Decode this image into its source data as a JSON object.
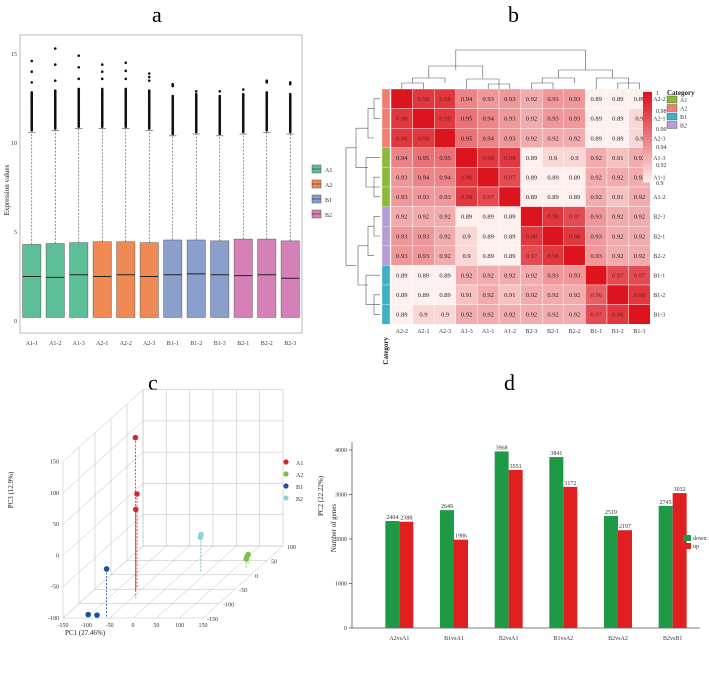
{
  "panels": {
    "a": "a",
    "b": "b",
    "c": "c",
    "d": "d"
  },
  "chart_data": [
    {
      "id": "a",
      "type": "box",
      "ylabel": "Expression values",
      "ylim": [
        0,
        15.5
      ],
      "yticks": [
        0,
        5,
        10,
        15
      ],
      "categories": [
        "A1-1",
        "A1-2",
        "A1-3",
        "A2-1",
        "A2-2",
        "A2-3",
        "B1-1",
        "B1-2",
        "B1-3",
        "B2-1",
        "B2-2",
        "B2-3"
      ],
      "groups": [
        "A1",
        "A1",
        "A1",
        "A2",
        "A2",
        "A2",
        "B1",
        "B1",
        "B1",
        "B2",
        "B2",
        "B2"
      ],
      "q1": [
        0.2,
        0.2,
        0.2,
        0.2,
        0.2,
        0.2,
        0.2,
        0.2,
        0.2,
        0.2,
        0.2,
        0.2
      ],
      "q3": [
        4.3,
        4.35,
        4.4,
        4.45,
        4.45,
        4.4,
        4.55,
        4.55,
        4.5,
        4.6,
        4.6,
        4.5
      ],
      "median": [
        2.5,
        2.45,
        2.6,
        2.5,
        2.6,
        2.5,
        2.6,
        2.65,
        2.6,
        2.55,
        2.6,
        2.4
      ],
      "whisker_high": [
        10.6,
        10.7,
        10.8,
        10.8,
        10.8,
        10.7,
        10.4,
        10.5,
        10.4,
        10.5,
        10.6,
        10.5
      ],
      "outlier_max": [
        14.6,
        15.3,
        14.9,
        14.4,
        14.5,
        13.9,
        13.3,
        12.9,
        12.9,
        13.0,
        13.5,
        13.4
      ],
      "legend": [
        {
          "name": "A1",
          "color": "#5cbf98"
        },
        {
          "name": "A2",
          "color": "#f08a55"
        },
        {
          "name": "B1",
          "color": "#8a9fcc"
        },
        {
          "name": "B2",
          "color": "#d680b8"
        }
      ]
    },
    {
      "id": "b",
      "type": "heatmap",
      "rows": [
        "A2-2",
        "A2-1",
        "A2-3",
        "A1-3",
        "A1-1",
        "A1-2",
        "B2-3",
        "B2-1",
        "B2-2",
        "B1-1",
        "B1-2",
        "B1-3"
      ],
      "cols": [
        "A2-2",
        "A2-1",
        "A2-3",
        "A1-3",
        "A1-1",
        "A1-2",
        "B2-3",
        "B2-1",
        "B2-2",
        "B1-1",
        "B1-2",
        "B1-3"
      ],
      "row_groups": [
        "A2",
        "A2",
        "A2",
        "A1",
        "A1",
        "A1",
        "B2",
        "B2",
        "B2",
        "B1",
        "B1",
        "B1"
      ],
      "values": [
        [
          "1",
          "0.98",
          "0.98",
          "0.94",
          "0.93",
          "0.93",
          "0.92",
          "0.93",
          "0.93",
          "0.89",
          "0.89",
          "0.89"
        ],
        [
          "0.98",
          "1",
          "0.98",
          "0.95",
          "0.94",
          "0.93",
          "0.92",
          "0.93",
          "0.93",
          "0.89",
          "0.89",
          "0.9"
        ],
        [
          "0.98",
          "0.98",
          "1",
          "0.95",
          "0.94",
          "0.93",
          "0.92",
          "0.92",
          "0.92",
          "0.89",
          "0.89",
          "0.9"
        ],
        [
          "0.94",
          "0.95",
          "0.95",
          "1",
          "0.98",
          "0.98",
          "0.89",
          "0.9",
          "0.9",
          "0.92",
          "0.91",
          "0.92"
        ],
        [
          "0.93",
          "0.94",
          "0.94",
          "0.98",
          "1",
          "0.97",
          "0.89",
          "0.89",
          "0.89",
          "0.92",
          "0.92",
          "0.92"
        ],
        [
          "0.93",
          "0.93",
          "0.93",
          "0.98",
          "0.97",
          "1",
          "0.89",
          "0.89",
          "0.89",
          "0.92",
          "0.91",
          "0.92"
        ],
        [
          "0.92",
          "0.92",
          "0.92",
          "0.89",
          "0.89",
          "0.89",
          "1",
          "0.98",
          "0.97",
          "0.93",
          "0.92",
          "0.92"
        ],
        [
          "0.93",
          "0.93",
          "0.92",
          "0.9",
          "0.89",
          "0.89",
          "0.98",
          "1",
          "0.98",
          "0.93",
          "0.92",
          "0.92"
        ],
        [
          "0.93",
          "0.93",
          "0.92",
          "0.9",
          "0.89",
          "0.89",
          "0.97",
          "0.98",
          "1",
          "0.93",
          "0.92",
          "0.92"
        ],
        [
          "0.89",
          "0.89",
          "0.89",
          "0.92",
          "0.92",
          "0.92",
          "0.92",
          "0.93",
          "0.93",
          "1",
          "0.97",
          "0.97"
        ],
        [
          "0.89",
          "0.89",
          "0.89",
          "0.91",
          "0.92",
          "0.91",
          "0.92",
          "0.92",
          "0.92",
          "0.96",
          "1",
          "0.98"
        ],
        [
          "0.89",
          "0.9",
          "0.9",
          "0.92",
          "0.92",
          "0.92",
          "0.92",
          "0.92",
          "0.92",
          "0.97",
          "0.98",
          "1"
        ]
      ],
      "scale_labels": [
        "1",
        "0.98",
        "0.96",
        "0.94",
        "0.92",
        "0.9"
      ],
      "legend_title": "Category",
      "legend": [
        {
          "name": "A1",
          "color": "#8db83a"
        },
        {
          "name": "A2",
          "color": "#ef7f73"
        },
        {
          "name": "B1",
          "color": "#3fb1c4"
        },
        {
          "name": "B2",
          "color": "#b89cd6"
        }
      ],
      "category_label": "Category"
    },
    {
      "id": "c",
      "type": "scatter3d",
      "xlabel": "PC1 (27.46%)",
      "ylabel": "PC2 (22.22%)",
      "zlabel": "PC3 (12.9%)",
      "xticks": [
        "-150",
        "-100",
        "-50",
        "0",
        "50",
        "100",
        "150"
      ],
      "yticks": [
        "-150",
        "-100",
        "-50",
        "0",
        "50",
        "100"
      ],
      "zticks": [
        "-100",
        "-50",
        "0",
        "50",
        "100",
        "150"
      ],
      "legend": [
        {
          "name": "A1",
          "color": "#d62728"
        },
        {
          "name": "A2",
          "color": "#7cc242"
        },
        {
          "name": "B1",
          "color": "#1f4e9c"
        },
        {
          "name": "B2",
          "color": "#8fd1d6"
        }
      ]
    },
    {
      "id": "d",
      "type": "bar",
      "ylabel": "Number of genes",
      "ylim": [
        0,
        4000
      ],
      "yticks": [
        "0",
        "1000",
        "2000",
        "3000",
        "4000"
      ],
      "categories": [
        "A2vsA1",
        "B1vsA1",
        "B2vsA1",
        "B1vsA2",
        "B2vsA2",
        "B2vsB1"
      ],
      "series": [
        {
          "name": "down",
          "color": "#1e9a47",
          "values": [
            2404,
            2649,
            3968,
            3841,
            2519,
            2745
          ],
          "labels": [
            "2404",
            "2649",
            "3968",
            "3841",
            "2519",
            "2745"
          ]
        },
        {
          "name": "up",
          "color": "#e02020",
          "values": [
            2388,
            1986,
            3551,
            3172,
            2197,
            3032
          ],
          "labels": [
            "2388",
            "1986",
            "3551",
            "3172",
            "2197",
            "3032"
          ]
        }
      ]
    }
  ]
}
